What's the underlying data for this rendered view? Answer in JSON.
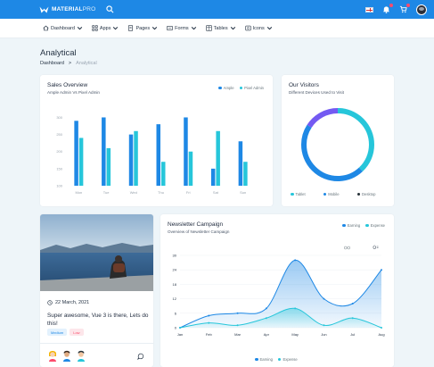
{
  "app": {
    "brand_bold": "MATERIAL",
    "brand_light": "PRO"
  },
  "icons": {
    "logo": "logo-icon",
    "search": "search-icon",
    "bell": "bell-icon",
    "cart": "cart-icon",
    "calendar": "calendar-icon",
    "chat": "chat-icon"
  },
  "menu": [
    {
      "label": "Dashboard",
      "icon": "home-icon"
    },
    {
      "label": "Apps",
      "icon": "apps-icon"
    },
    {
      "label": "Pages",
      "icon": "pages-icon"
    },
    {
      "label": "Forms",
      "icon": "forms-icon"
    },
    {
      "label": "Tables",
      "icon": "tables-icon"
    },
    {
      "label": "Icons",
      "icon": "icons-icon"
    }
  ],
  "page": {
    "title": "Analytical",
    "breadcrumb": {
      "root": "Dashboard",
      "separator": ">",
      "current": "Analytical"
    }
  },
  "colors": {
    "primary": "#1e88e5",
    "secondary": "#26c6da",
    "dark": "#263238",
    "accent": "#745af2"
  },
  "sales": {
    "title": "Sales Overview",
    "subtitle": "Ample Admin Vs Pixel Admin",
    "legend": [
      "Ample",
      "Pixel Admin"
    ]
  },
  "visitors": {
    "title": "Our Visitors",
    "subtitle": "Different Devices Used to Visit",
    "legend": [
      "Tablet",
      "Mobile",
      "Desktop"
    ]
  },
  "post": {
    "date": "22 March, 2021",
    "title": "Super awesome, Vue 3 is there, Lets do this!",
    "tags": [
      "Medium",
      "Low"
    ]
  },
  "newsletter": {
    "title": "Newsletter Campaign",
    "subtitle": "Overview of Newsletter Campaign",
    "legend": [
      "Earning",
      "Expense"
    ]
  },
  "chart_data": [
    {
      "type": "bar",
      "categories": [
        "Mon",
        "Tue",
        "Wed",
        "Thu",
        "Fri",
        "Sat",
        "Sun"
      ],
      "series": [
        {
          "name": "Ample",
          "values": [
            290,
            300,
            250,
            280,
            300,
            150,
            230
          ]
        },
        {
          "name": "Pixel Admin",
          "values": [
            240,
            210,
            260,
            170,
            200,
            260,
            170
          ]
        }
      ],
      "y_ticks": [
        "100",
        "150",
        "200",
        "250",
        "300"
      ],
      "ylim": [
        100,
        330
      ]
    },
    {
      "type": "pie",
      "categories": [
        "Tablet",
        "Mobile",
        "Desktop"
      ],
      "values": [
        38,
        46,
        16
      ],
      "colors": [
        "#26c6da",
        "#1e88e5",
        "#745af2"
      ]
    },
    {
      "type": "area",
      "categories": [
        "Jan",
        "Feb",
        "Mar",
        "Apr",
        "May",
        "Jun",
        "Jul",
        "Aug"
      ],
      "series": [
        {
          "name": "Earning",
          "values": [
            0,
            5,
            6,
            8,
            28,
            12,
            10,
            24
          ]
        },
        {
          "name": "Expense",
          "values": [
            0,
            2,
            1,
            4,
            8,
            1,
            4,
            0
          ]
        }
      ],
      "y_ticks": [
        "0",
        "6",
        "12",
        "18",
        "24",
        "30"
      ],
      "ylim": [
        0,
        30
      ]
    }
  ]
}
